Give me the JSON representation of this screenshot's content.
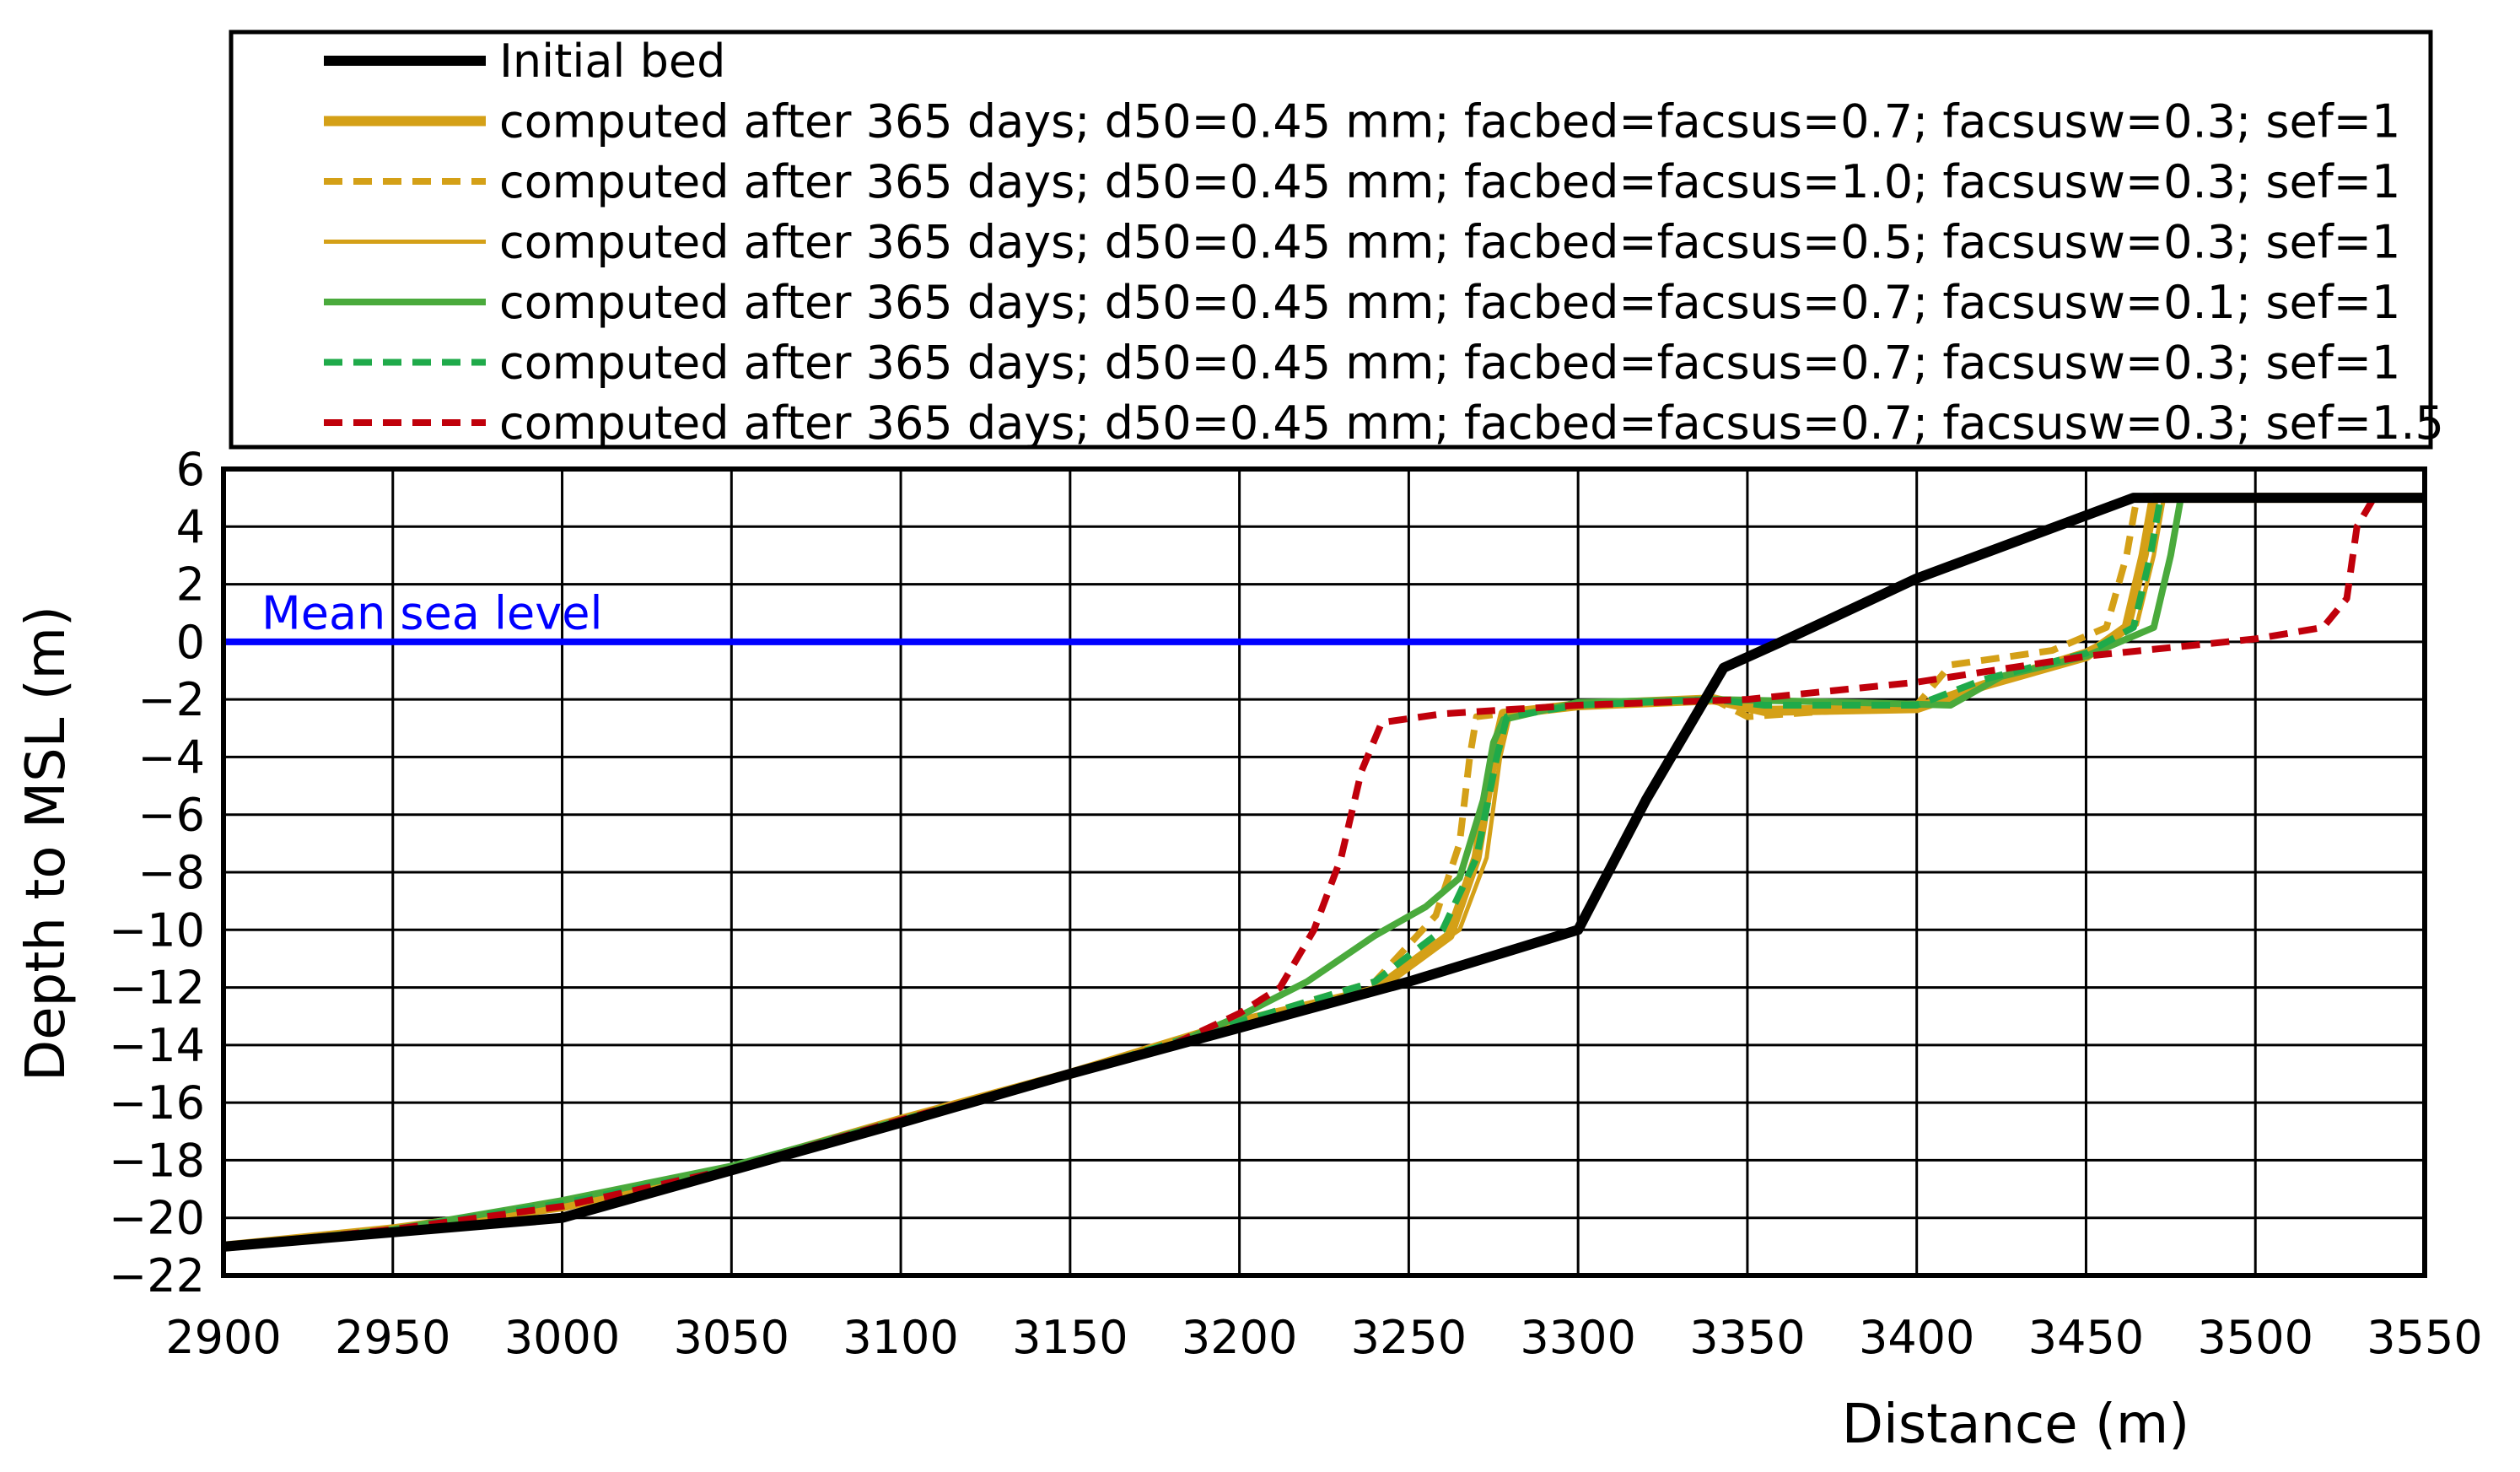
{
  "chart_data": {
    "type": "line",
    "title": "",
    "xlabel": "Distance (m)",
    "ylabel": "Depth to MSL (m)",
    "xlim": [
      2900,
      3550
    ],
    "ylim": [
      -22,
      6
    ],
    "xticks": [
      2900,
      2950,
      3000,
      3050,
      3100,
      3150,
      3200,
      3250,
      3300,
      3350,
      3400,
      3450,
      3500,
      3550
    ],
    "yticks": [
      -22,
      -20,
      -18,
      -16,
      -14,
      -12,
      -10,
      -8,
      -6,
      -4,
      -2,
      0,
      2,
      4,
      6
    ],
    "xtick_labels": [
      "2900",
      "2950",
      "3000",
      "3050",
      "3100",
      "3150",
      "3200",
      "3250",
      "3300",
      "3350",
      "3400",
      "3450",
      "3500",
      "3550"
    ],
    "ytick_labels": [
      "−22",
      "−20",
      "−18",
      "−16",
      "−14",
      "−12",
      "−10",
      "−8",
      "−6",
      "−4",
      "−2",
      "0",
      "2",
      "4",
      "6"
    ],
    "grid": true,
    "legend_position": "top",
    "annotations": [
      {
        "text": "Mean sea level",
        "x": 2910,
        "y": 1.0,
        "color": "#0000ff"
      }
    ],
    "reference_line": {
      "name": "Mean sea level",
      "y": 0,
      "x_start": 2900,
      "x_end": 3360,
      "color": "#0000ff"
    },
    "series": [
      {
        "name": "Initial bed",
        "color": "#000000",
        "dash": "solid",
        "weight": "thick",
        "x": [
          2900,
          2950,
          3000,
          3100,
          3150,
          3200,
          3250,
          3300,
          3320,
          3343,
          3360,
          3400,
          3464,
          3550
        ],
        "y": [
          -21,
          -20.5,
          -20,
          -16.7,
          -15,
          -13.4,
          -11.8,
          -10,
          -5.5,
          -0.9,
          0,
          2.2,
          5,
          5
        ]
      },
      {
        "name": "computed after 365 days; d50=0.45 mm; facbed=facsus=0.7; facsusw=0.3; sef=1",
        "color": "#d4a017",
        "dash": "solid",
        "weight": "thick",
        "x": [
          2900,
          2950,
          3000,
          3050,
          3100,
          3150,
          3200,
          3240,
          3262,
          3270,
          3275,
          3278,
          3300,
          3340,
          3355,
          3400,
          3420,
          3450,
          3462,
          3467,
          3470,
          3550
        ],
        "y": [
          -21,
          -20.4,
          -19.6,
          -18.3,
          -16.6,
          -15,
          -13.2,
          -12.1,
          -10.2,
          -7.5,
          -4,
          -2.5,
          -2.2,
          -2.0,
          -2.4,
          -2.3,
          -1.5,
          -0.5,
          0.5,
          3,
          5,
          5
        ]
      },
      {
        "name": "computed after 365 days; d50=0.45 mm; facbed=facsus=1.0; facsusw=0.3; sef=1",
        "color": "#d4a017",
        "dash": "dashed",
        "weight": "medium",
        "x": [
          2900,
          2950,
          3000,
          3050,
          3100,
          3150,
          3200,
          3240,
          3258,
          3265,
          3268,
          3270,
          3300,
          3340,
          3350,
          3400,
          3410,
          3440,
          3456,
          3462,
          3465,
          3550
        ],
        "y": [
          -21,
          -20.4,
          -19.6,
          -18.3,
          -16.6,
          -15,
          -13.2,
          -11.8,
          -9.5,
          -7,
          -4,
          -2.6,
          -2.2,
          -2.0,
          -2.6,
          -2.2,
          -0.8,
          -0.3,
          0.5,
          3,
          5,
          5
        ]
      },
      {
        "name": "computed after 365 days; d50=0.45 mm; facbed=facsus=0.5; facsusw=0.3; sef=1",
        "color": "#d4a017",
        "dash": "solid",
        "weight": "thin",
        "x": [
          2900,
          2950,
          3000,
          3050,
          3100,
          3150,
          3200,
          3240,
          3265,
          3273,
          3277,
          3280,
          3300,
          3340,
          3355,
          3400,
          3420,
          3450,
          3465,
          3470,
          3473,
          3550
        ],
        "y": [
          -21,
          -20.4,
          -19.6,
          -18.3,
          -16.6,
          -15,
          -13.2,
          -12,
          -10,
          -7.5,
          -4,
          -2.5,
          -2.2,
          -2.0,
          -2.3,
          -2.3,
          -1.4,
          -0.3,
          0.6,
          3,
          5,
          5
        ]
      },
      {
        "name": "computed after 365 days; d50=0.45 mm; facbed=facsus=0.7; facsusw=0.1; sef=1",
        "color": "#4aaa3c",
        "dash": "solid",
        "weight": "medium",
        "x": [
          2900,
          2950,
          3000,
          3050,
          3100,
          3150,
          3180,
          3200,
          3220,
          3240,
          3255,
          3265,
          3272,
          3275,
          3278,
          3300,
          3340,
          3380,
          3410,
          3425,
          3450,
          3470,
          3475,
          3478,
          3550
        ],
        "y": [
          -21,
          -20.4,
          -19.4,
          -18.2,
          -16.6,
          -15,
          -14,
          -13,
          -11.8,
          -10.2,
          -9.2,
          -8.2,
          -5.5,
          -3.5,
          -2.7,
          -2.1,
          -2.0,
          -2.1,
          -2.2,
          -1.2,
          -0.5,
          0.5,
          3,
          5,
          5
        ]
      },
      {
        "name": "computed after 365 days; d50=0.45 mm; facbed=facsus=0.7; facsusw=0.3; sef=1",
        "color": "#1faa4a",
        "dash": "dashed",
        "weight": "medium",
        "x": [
          2900,
          2950,
          3000,
          3050,
          3100,
          3150,
          3200,
          3240,
          3260,
          3270,
          3276,
          3279,
          3300,
          3340,
          3355,
          3400,
          3420,
          3450,
          3464,
          3469,
          3472,
          3550
        ],
        "y": [
          -21,
          -20.4,
          -19.5,
          -18.3,
          -16.6,
          -15,
          -13.2,
          -11.8,
          -10,
          -7.5,
          -4,
          -2.6,
          -2.2,
          -2.0,
          -2.2,
          -2.2,
          -1.3,
          -0.4,
          0.5,
          3,
          5,
          5
        ]
      },
      {
        "name": "computed after 365 days; d50=0.45 mm; facbed=facsus=0.7; facsusw=0.3; sef=1.5",
        "color": "#c0000b",
        "dash": "dashed",
        "weight": "medium",
        "x": [
          2900,
          2950,
          3000,
          3050,
          3100,
          3150,
          3180,
          3200,
          3212,
          3222,
          3230,
          3236,
          3242,
          3260,
          3300,
          3350,
          3400,
          3450,
          3500,
          3520,
          3527,
          3530,
          3535,
          3550
        ],
        "y": [
          -21,
          -20.4,
          -19.6,
          -18.3,
          -16.6,
          -15,
          -14,
          -12.9,
          -12,
          -10,
          -7.5,
          -4.5,
          -2.8,
          -2.5,
          -2.2,
          -2.0,
          -1.4,
          -0.5,
          0.1,
          0.5,
          1.5,
          4,
          5,
          5
        ]
      }
    ]
  }
}
